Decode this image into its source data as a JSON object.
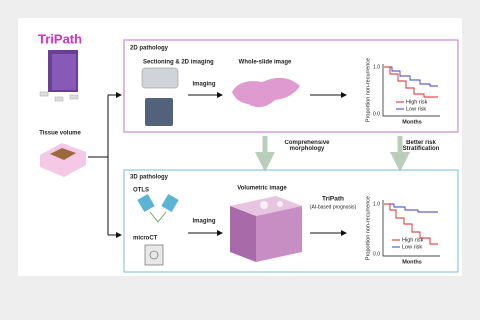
{
  "title": "TriPath",
  "input": {
    "label": "Tissue volume"
  },
  "panel_2d": {
    "title": "2D pathology",
    "step": "Sectioning & 2D imaging",
    "arrow_label": "Imaging",
    "image_label": "Whole-slide image",
    "plot": {
      "y_label": "Proportion non-recurrence",
      "x_label": "Months",
      "y_top": "1.0",
      "y_bottom": "0.0",
      "legend": [
        "High risk",
        "Low risk"
      ]
    }
  },
  "transition": {
    "left": "Comprehensive morphology",
    "right": "Better risk Stratification"
  },
  "panel_3d": {
    "title": "3D pathology",
    "devices": [
      "OTLS",
      "microCT"
    ],
    "arrow_label": "Imaging",
    "image_label": "Volumetric image",
    "model": "TriPath",
    "model_note": "(AI-based prognosis)",
    "plot": {
      "y_label": "Proportion non-recurrence",
      "x_label": "Months",
      "y_top": "1.0",
      "y_bottom": "0.0",
      "legend": [
        "High risk",
        "Low risk"
      ]
    }
  }
}
